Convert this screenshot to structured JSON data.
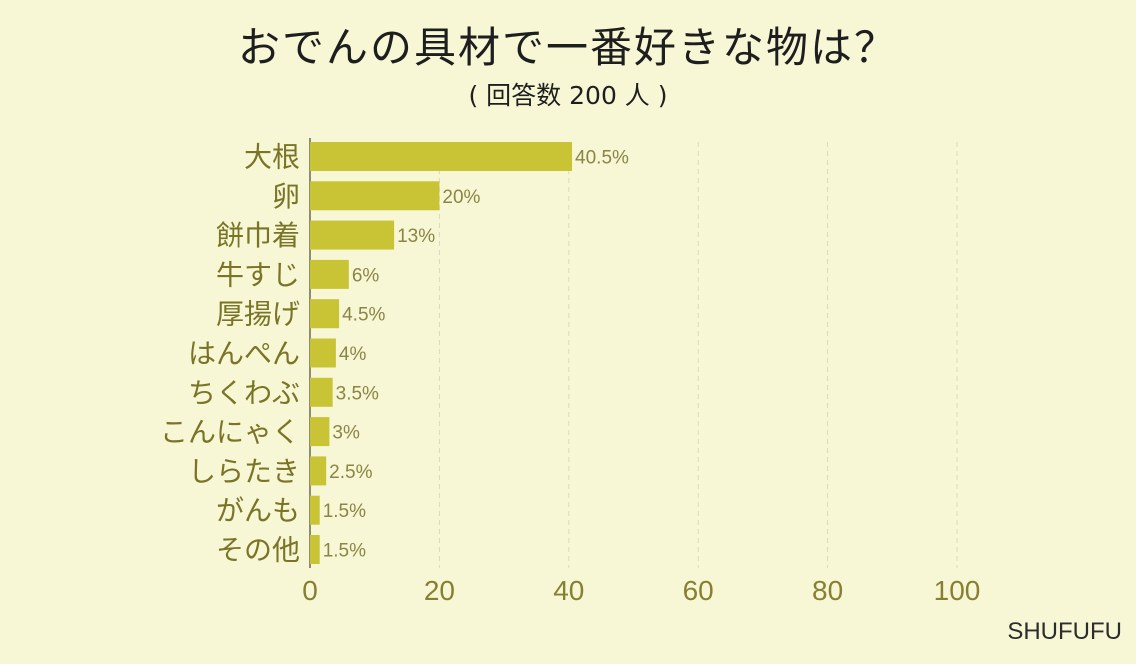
{
  "chart_data": {
    "type": "bar",
    "orientation": "horizontal",
    "title": "おでんの具材で一番好きな物は？",
    "subtitle": "( 回答数 200 人 )",
    "categories": [
      "大根",
      "卵",
      "餅巾着",
      "牛すじ",
      "厚揚げ",
      "はんぺん",
      "ちくわぶ",
      "こんにゃく",
      "しらたき",
      "がんも",
      "その他"
    ],
    "values": [
      40.5,
      20,
      13,
      6,
      4.5,
      4,
      3.5,
      3,
      2.5,
      1.5,
      1.5
    ],
    "data_labels": [
      "40.5%",
      "20%",
      "13%",
      "6%",
      "4.5%",
      "4%",
      "3.5%",
      "3%",
      "2.5%",
      "1.5%",
      "1.5%"
    ],
    "xlim": [
      0,
      100
    ],
    "xticks": [
      0,
      20,
      40,
      60,
      80,
      100
    ],
    "grid": true,
    "legend": "none",
    "colors": {
      "background": "#f7f7d6",
      "bar": "#c9c435",
      "category_text": "#7a7526",
      "label_text": "#8a8542",
      "tick_text": "#868033",
      "grid": "#d9d9c0",
      "axis": "#6a6a50"
    }
  },
  "brand": "SHUFUFU"
}
